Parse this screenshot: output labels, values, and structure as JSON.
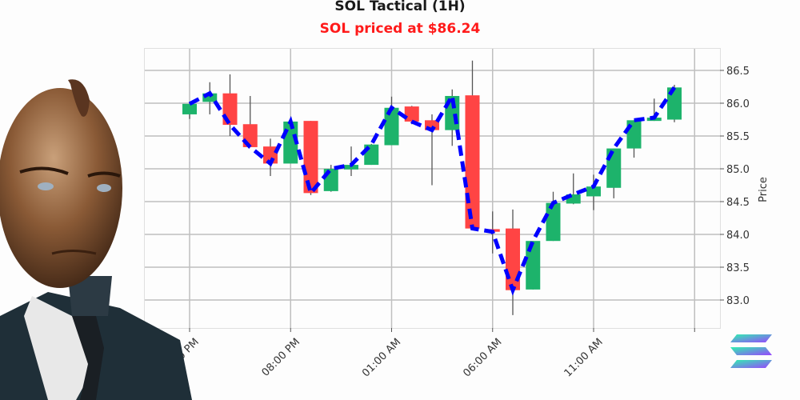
{
  "header": {
    "title": "SOL Tactical (1H)",
    "subtitle": "SOL priced at $86.24",
    "subtitle_color": "#ff1a1a"
  },
  "colors": {
    "up": "#1db36b",
    "down": "#ff4444",
    "trend_line": "#0000ff",
    "grid": "#bfbfbf",
    "wick": "#555555"
  },
  "icons": {
    "logo": "solana-logo-icon",
    "avatar": "robot-trader-avatar-icon"
  },
  "chart_data": {
    "type": "candlestick",
    "title": "SOL Tactical (1H)",
    "subtitle": "SOL priced at $86.24",
    "xlabel": "",
    "ylabel": "Price",
    "ylim": [
      82.6,
      86.85
    ],
    "y_ticks": [
      83.0,
      83.5,
      84.0,
      84.5,
      85.0,
      85.5,
      86.0,
      86.5
    ],
    "y_tick_labels": [
      "83.0",
      "83.5",
      "84.0",
      "84.5",
      "85.0",
      "85.5",
      "86.0",
      "86.5"
    ],
    "x_tick_labels": [
      "03:00 PM",
      "08:00 PM",
      "01:00 AM",
      "06:00 AM",
      "11:00 AM",
      ""
    ],
    "x_tick_candle_index": [
      0,
      5,
      10,
      15,
      20,
      25
    ],
    "grid": true,
    "y_axis_position": "right",
    "series": [
      {
        "name": "SOL 1H OHLC",
        "candles": [
          {
            "open": 85.83,
            "high": 86.02,
            "low": 85.76,
            "close": 85.99
          },
          {
            "open": 86.02,
            "high": 86.32,
            "low": 85.83,
            "close": 86.15
          },
          {
            "open": 86.15,
            "high": 86.44,
            "low": 85.5,
            "close": 85.67
          },
          {
            "open": 85.68,
            "high": 86.11,
            "low": 85.33,
            "close": 85.33
          },
          {
            "open": 85.34,
            "high": 85.46,
            "low": 84.89,
            "close": 85.08
          },
          {
            "open": 85.08,
            "high": 85.72,
            "low": 85.08,
            "close": 85.72
          },
          {
            "open": 85.73,
            "high": 85.73,
            "low": 84.6,
            "close": 84.63
          },
          {
            "open": 84.66,
            "high": 85.06,
            "low": 84.65,
            "close": 85.0
          },
          {
            "open": 84.99,
            "high": 85.34,
            "low": 84.89,
            "close": 85.06
          },
          {
            "open": 85.06,
            "high": 85.38,
            "low": 85.06,
            "close": 85.37
          },
          {
            "open": 85.36,
            "high": 86.1,
            "low": 85.36,
            "close": 85.93
          },
          {
            "open": 85.95,
            "high": 85.96,
            "low": 85.68,
            "close": 85.72
          },
          {
            "open": 85.74,
            "high": 85.83,
            "low": 84.75,
            "close": 85.59
          },
          {
            "open": 85.59,
            "high": 86.21,
            "low": 85.35,
            "close": 86.11
          },
          {
            "open": 86.12,
            "high": 86.65,
            "low": 84.09,
            "close": 84.09
          },
          {
            "open": 84.08,
            "high": 84.35,
            "low": 83.71,
            "close": 84.04
          },
          {
            "open": 84.09,
            "high": 84.38,
            "low": 82.77,
            "close": 83.15
          },
          {
            "open": 83.16,
            "high": 83.9,
            "low": 83.16,
            "close": 83.9
          },
          {
            "open": 83.9,
            "high": 84.65,
            "low": 83.9,
            "close": 84.48
          },
          {
            "open": 84.47,
            "high": 84.93,
            "low": 84.46,
            "close": 84.61
          },
          {
            "open": 84.58,
            "high": 84.91,
            "low": 84.37,
            "close": 84.73
          },
          {
            "open": 84.71,
            "high": 85.31,
            "low": 84.55,
            "close": 85.31
          },
          {
            "open": 85.31,
            "high": 85.74,
            "low": 85.17,
            "close": 85.74
          },
          {
            "open": 85.73,
            "high": 86.07,
            "low": 85.73,
            "close": 85.78
          },
          {
            "open": 85.75,
            "high": 86.28,
            "low": 85.71,
            "close": 86.24
          }
        ]
      },
      {
        "name": "Close trend (dashed)",
        "values": [
          85.99,
          86.15,
          85.67,
          85.33,
          85.08,
          85.72,
          84.63,
          85.0,
          85.06,
          85.37,
          85.93,
          85.72,
          85.59,
          86.11,
          84.09,
          84.04,
          83.15,
          83.9,
          84.48,
          84.61,
          84.73,
          85.31,
          85.74,
          85.78,
          86.24
        ]
      }
    ]
  }
}
